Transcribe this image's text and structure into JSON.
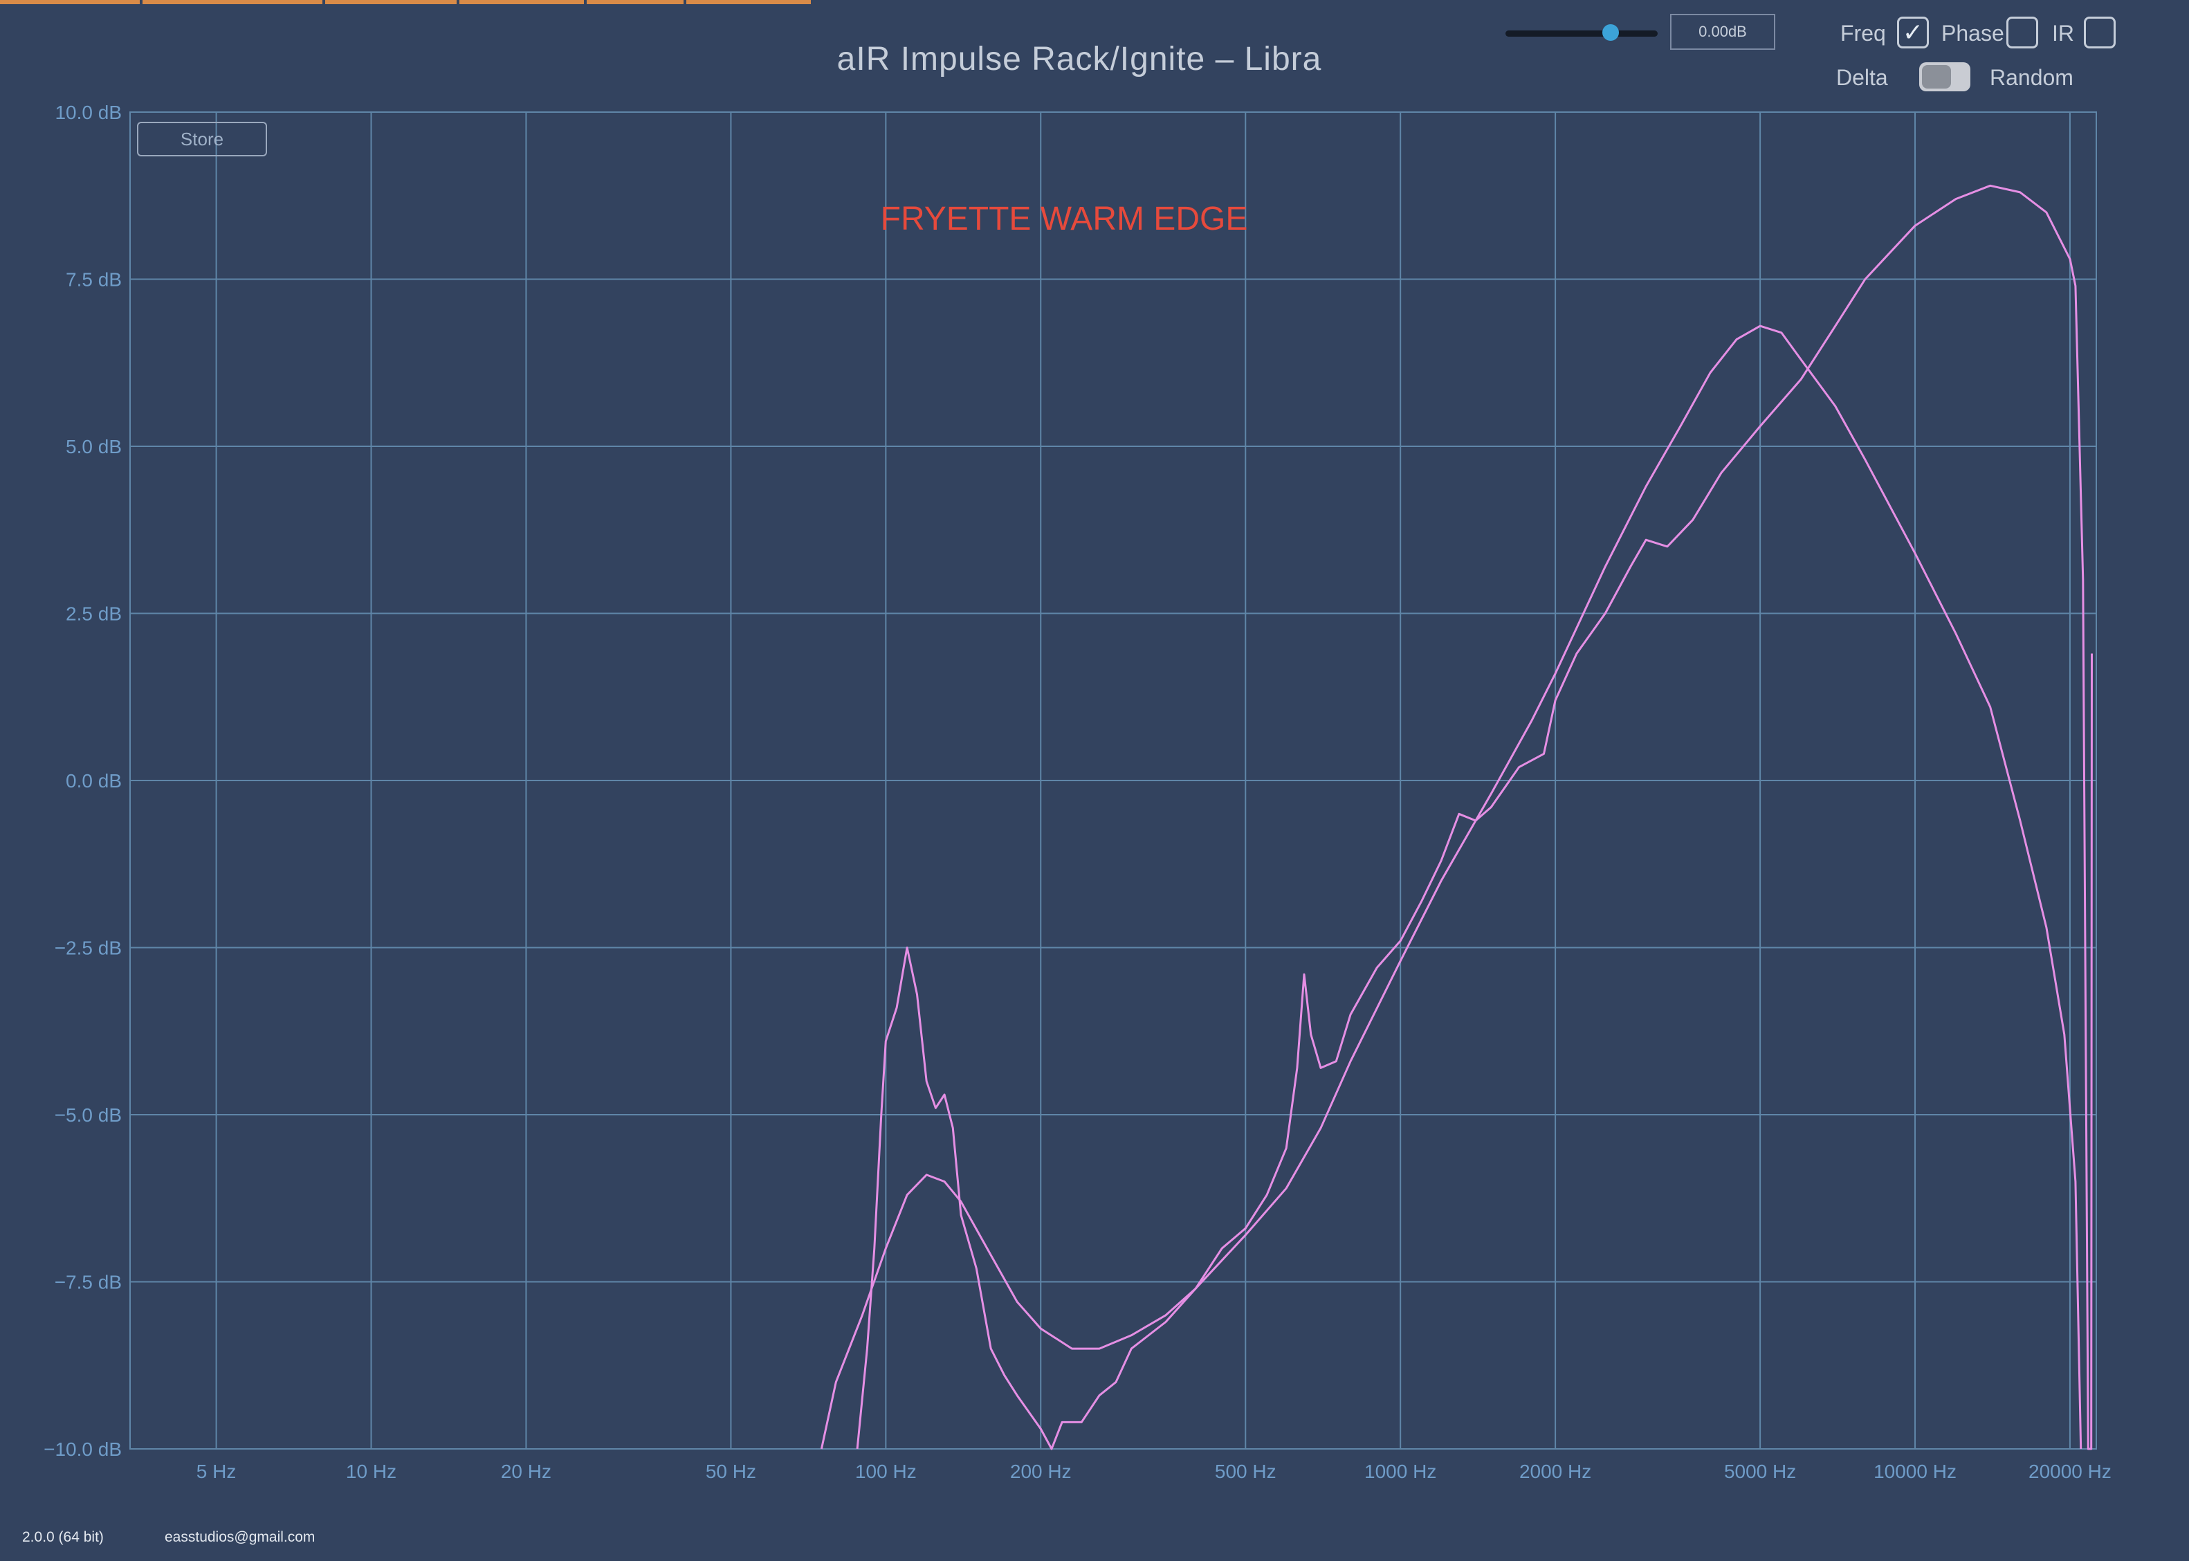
{
  "app": {
    "title": "aIR Impulse Rack/Ignite – Libra",
    "version": "2.0.0 (64 bit)",
    "contact": "easstudios@gmail.com"
  },
  "controls": {
    "gain_value": "0.00dB",
    "gain_slider_level": 0.69,
    "freq_label": "Freq",
    "freq_checked": true,
    "phase_label": "Phase",
    "phase_checked": false,
    "ir_label": "IR",
    "ir_checked": false,
    "delta_label": "Delta",
    "delta_on": false,
    "random_label": "Random",
    "store_label": "Store"
  },
  "colors": {
    "background": "#33435f",
    "grid": "#5f86a8",
    "axis_text": "#6f9cc8",
    "curve": "#e58fe4",
    "annotation": "#e64a3c",
    "slider_thumb": "#3ca3d8",
    "tab_accent": "#d98b48"
  },
  "chart_data": {
    "type": "line",
    "title": "",
    "annotation": "FRYETTE WARM EDGE",
    "x_scale": "log",
    "xlim": [
      3.4,
      22500
    ],
    "ylim": [
      -10,
      10
    ],
    "grid": true,
    "x_ticks": [
      {
        "value": 5,
        "label": "5 Hz"
      },
      {
        "value": 10,
        "label": "10 Hz"
      },
      {
        "value": 20,
        "label": "20 Hz"
      },
      {
        "value": 50,
        "label": "50 Hz"
      },
      {
        "value": 100,
        "label": "100 Hz"
      },
      {
        "value": 200,
        "label": "200 Hz"
      },
      {
        "value": 500,
        "label": "500 Hz"
      },
      {
        "value": 1000,
        "label": "1000 Hz"
      },
      {
        "value": 2000,
        "label": "2000 Hz"
      },
      {
        "value": 5000,
        "label": "5000 Hz"
      },
      {
        "value": 10000,
        "label": "10000 Hz"
      },
      {
        "value": 20000,
        "label": "20000 Hz"
      }
    ],
    "y_ticks": [
      {
        "value": 10,
        "label": "10.0 dB"
      },
      {
        "value": 7.5,
        "label": "7.5 dB"
      },
      {
        "value": 5,
        "label": "5.0 dB"
      },
      {
        "value": 2.5,
        "label": "2.5 dB"
      },
      {
        "value": 0,
        "label": "0.0 dB"
      },
      {
        "value": -2.5,
        "label": "−2.5 dB"
      },
      {
        "value": -5,
        "label": "−5.0 dB"
      },
      {
        "value": -7.5,
        "label": "−7.5 dB"
      },
      {
        "value": -10,
        "label": "−10.0 dB"
      }
    ],
    "series": [
      {
        "points": [
          [
            75,
            -10
          ],
          [
            80,
            -9
          ],
          [
            90,
            -8
          ],
          [
            100,
            -7
          ],
          [
            110,
            -6.2
          ],
          [
            120,
            -5.9
          ],
          [
            130,
            -6
          ],
          [
            140,
            -6.3
          ],
          [
            160,
            -7.1
          ],
          [
            180,
            -7.8
          ],
          [
            200,
            -8.2
          ],
          [
            230,
            -8.5
          ],
          [
            260,
            -8.5
          ],
          [
            300,
            -8.3
          ],
          [
            350,
            -8
          ],
          [
            400,
            -7.6
          ],
          [
            500,
            -6.8
          ],
          [
            600,
            -6.1
          ],
          [
            700,
            -5.2
          ],
          [
            800,
            -4.2
          ],
          [
            1000,
            -2.7
          ],
          [
            1200,
            -1.5
          ],
          [
            1500,
            -0.2
          ],
          [
            1800,
            0.9
          ],
          [
            2000,
            1.6
          ],
          [
            2500,
            3.2
          ],
          [
            3000,
            4.4
          ],
          [
            3500,
            5.3
          ],
          [
            4000,
            6.1
          ],
          [
            4500,
            6.6
          ],
          [
            5000,
            6.8
          ],
          [
            5500,
            6.7
          ],
          [
            6000,
            6.3
          ],
          [
            7000,
            5.6
          ],
          [
            8000,
            4.8
          ],
          [
            10000,
            3.4
          ],
          [
            12000,
            2.2
          ],
          [
            14000,
            1.1
          ],
          [
            16000,
            -0.6
          ],
          [
            18000,
            -2.2
          ],
          [
            19500,
            -3.8
          ],
          [
            20500,
            -6
          ],
          [
            21000,
            -10
          ]
        ]
      },
      {
        "points": [
          [
            88,
            -10
          ],
          [
            92,
            -8.5
          ],
          [
            95,
            -7
          ],
          [
            98,
            -5
          ],
          [
            100,
            -3.9
          ],
          [
            105,
            -3.4
          ],
          [
            110,
            -2.5
          ],
          [
            115,
            -3.2
          ],
          [
            120,
            -4.5
          ],
          [
            125,
            -4.9
          ],
          [
            130,
            -4.7
          ],
          [
            135,
            -5.2
          ],
          [
            140,
            -6.5
          ],
          [
            150,
            -7.3
          ],
          [
            160,
            -8.5
          ],
          [
            170,
            -8.9
          ],
          [
            180,
            -9.2
          ],
          [
            200,
            -9.7
          ],
          [
            210,
            -10
          ],
          [
            220,
            -9.6
          ],
          [
            240,
            -9.6
          ],
          [
            260,
            -9.2
          ],
          [
            280,
            -9
          ],
          [
            300,
            -8.5
          ],
          [
            350,
            -8.1
          ],
          [
            400,
            -7.6
          ],
          [
            450,
            -7
          ],
          [
            500,
            -6.7
          ],
          [
            550,
            -6.2
          ],
          [
            600,
            -5.5
          ],
          [
            630,
            -4.3
          ],
          [
            650,
            -2.9
          ],
          [
            670,
            -3.8
          ],
          [
            700,
            -4.3
          ],
          [
            750,
            -4.2
          ],
          [
            800,
            -3.5
          ],
          [
            900,
            -2.8
          ],
          [
            1000,
            -2.4
          ],
          [
            1100,
            -1.8
          ],
          [
            1200,
            -1.2
          ],
          [
            1300,
            -0.5
          ],
          [
            1400,
            -0.6
          ],
          [
            1500,
            -0.4
          ],
          [
            1700,
            0.2
          ],
          [
            1900,
            0.4
          ],
          [
            2000,
            1.2
          ],
          [
            2200,
            1.9
          ],
          [
            2500,
            2.5
          ],
          [
            2800,
            3.2
          ],
          [
            3000,
            3.6
          ],
          [
            3300,
            3.5
          ],
          [
            3700,
            3.9
          ],
          [
            4200,
            4.6
          ],
          [
            5000,
            5.3
          ],
          [
            6000,
            6
          ],
          [
            7000,
            6.8
          ],
          [
            8000,
            7.5
          ],
          [
            10000,
            8.3
          ],
          [
            12000,
            8.7
          ],
          [
            14000,
            8.9
          ],
          [
            16000,
            8.8
          ],
          [
            18000,
            8.5
          ],
          [
            20000,
            7.8
          ],
          [
            20500,
            7.4
          ],
          [
            21200,
            3
          ],
          [
            21700,
            -10
          ],
          [
            22000,
            -10
          ],
          [
            22050,
            1.9
          ]
        ]
      }
    ]
  }
}
